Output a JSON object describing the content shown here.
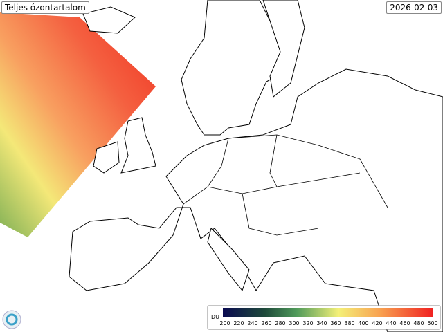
{
  "header": {
    "title": "Teljes ózontartalom",
    "date": "2026-02-03"
  },
  "legend": {
    "unit": "DU",
    "ticks": [
      200,
      220,
      240,
      260,
      280,
      300,
      320,
      340,
      360,
      380,
      400,
      420,
      440,
      460,
      480,
      500
    ]
  }
}
